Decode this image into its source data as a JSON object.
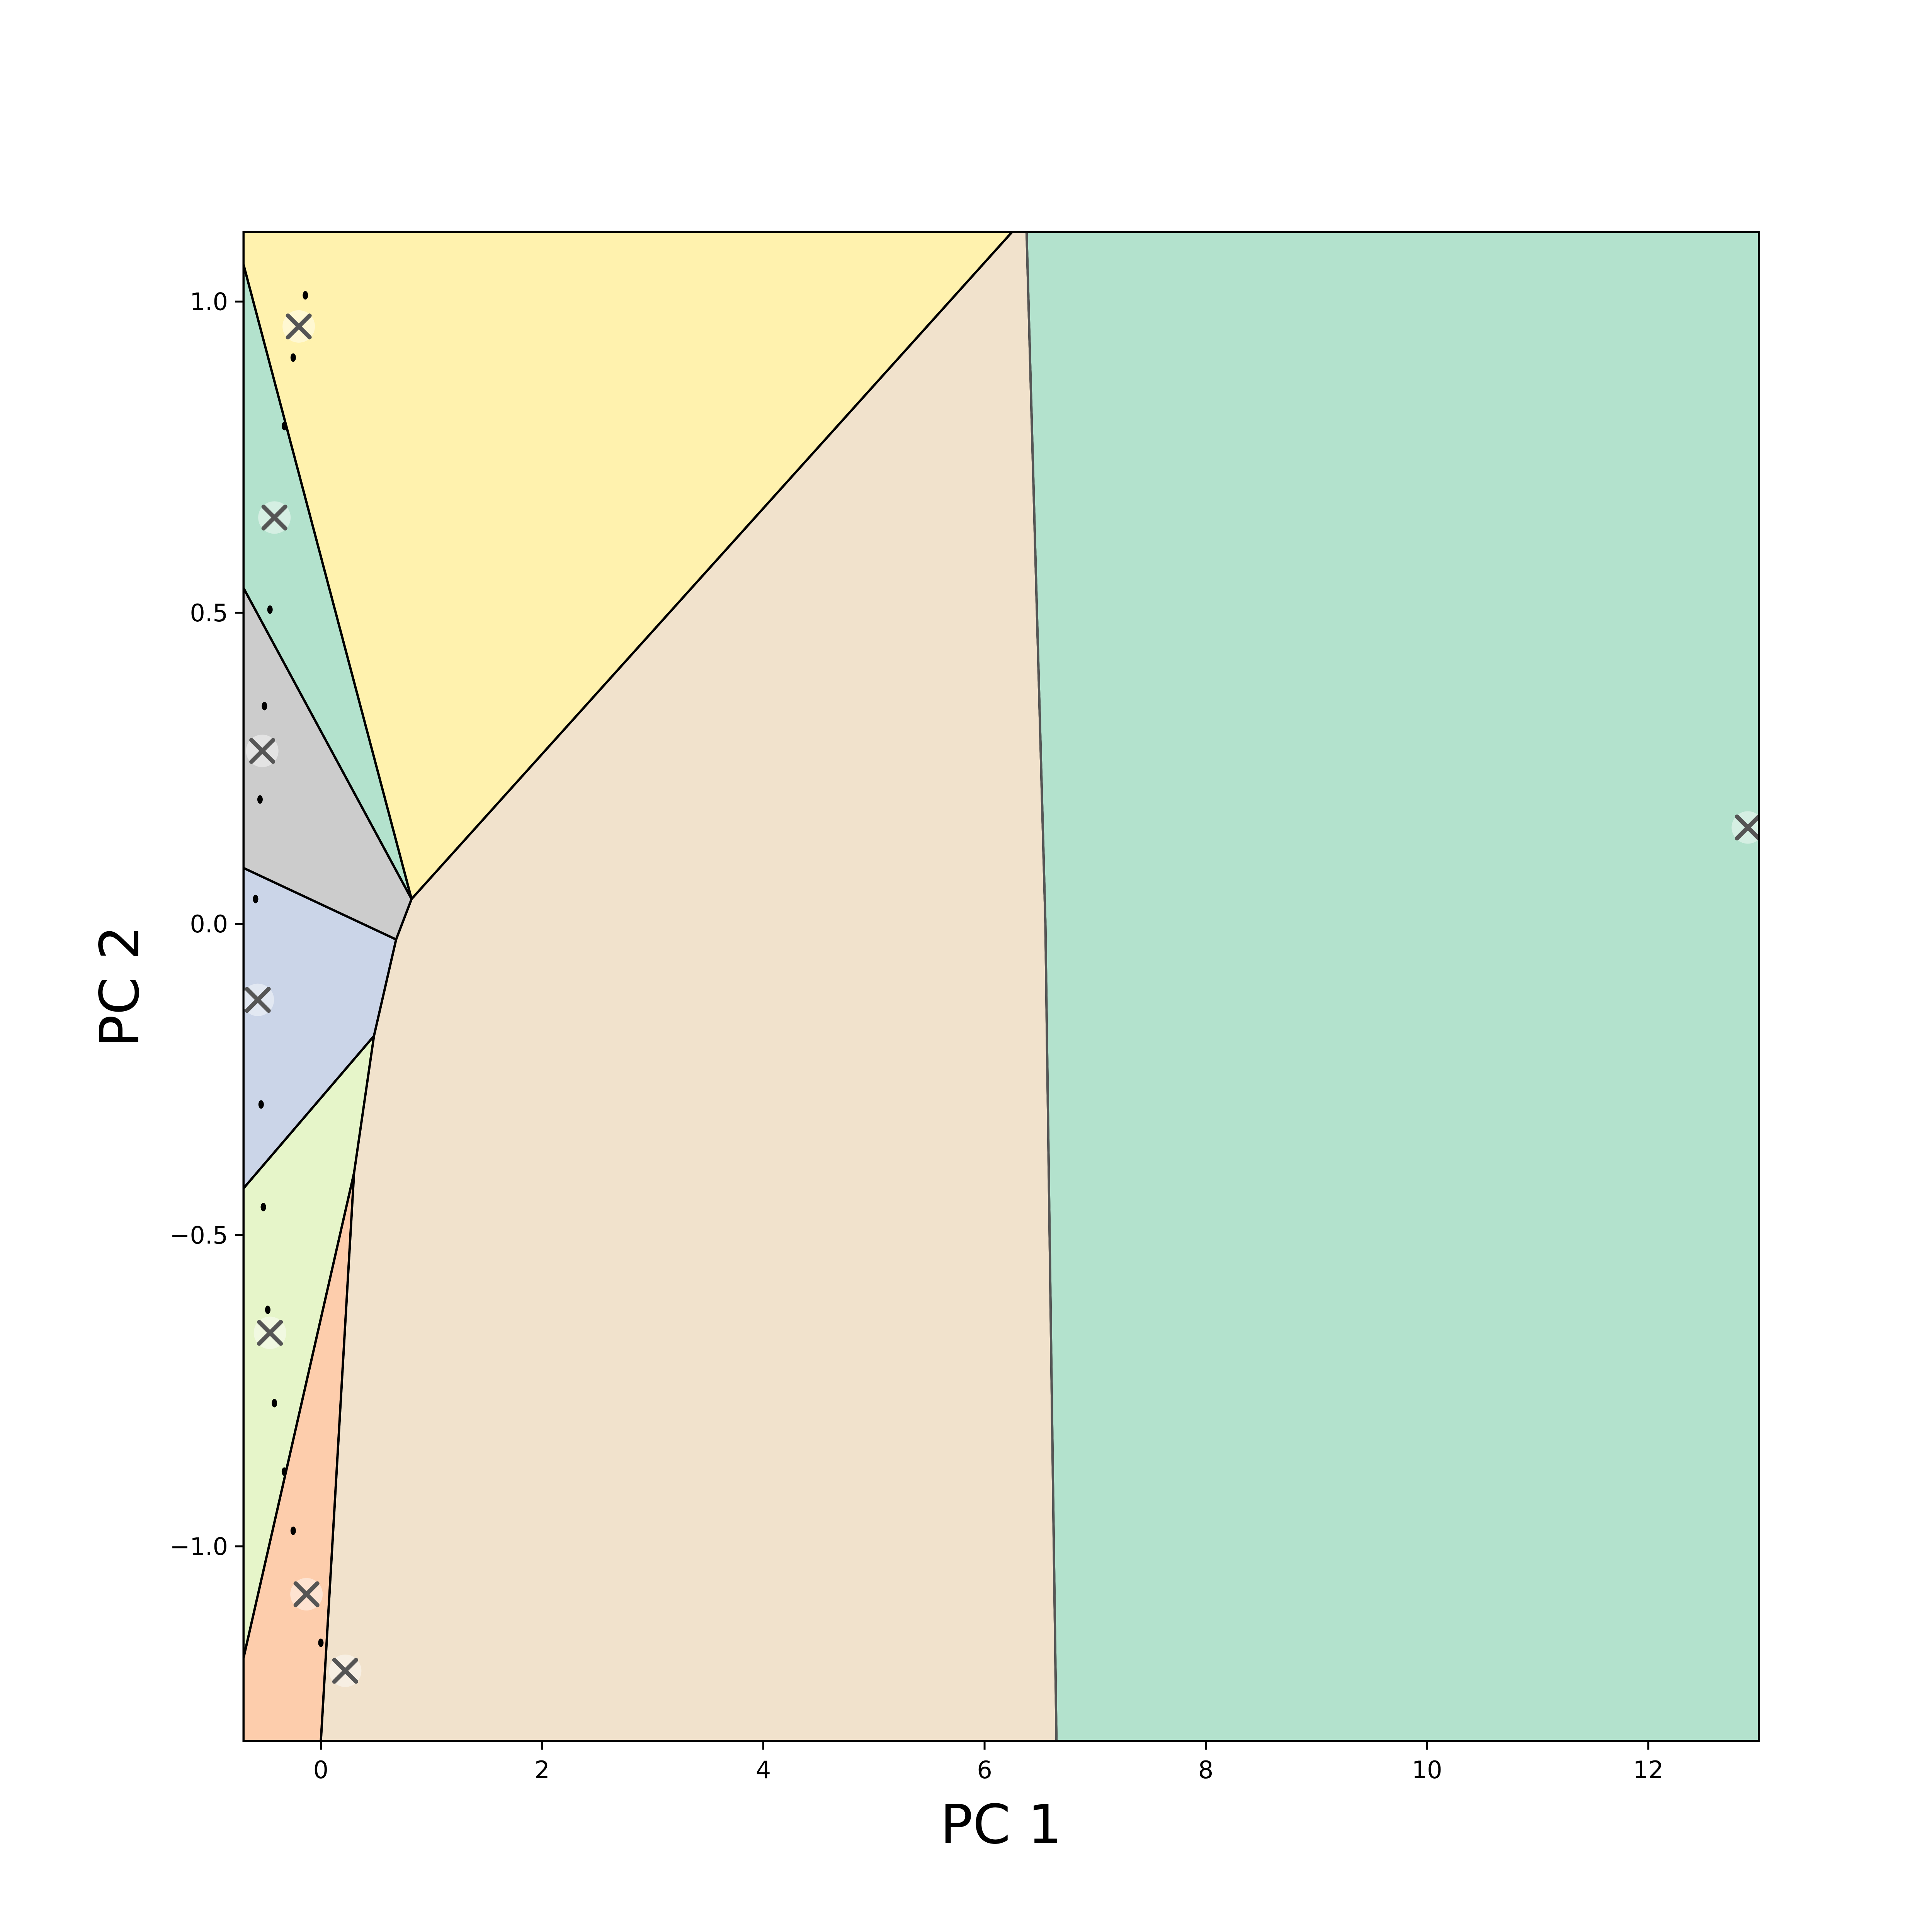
{
  "chart_data": {
    "type": "scatter",
    "title": "",
    "xlabel": "PC 1",
    "ylabel": "PC 2",
    "xlim": [
      -0.7,
      13.0
    ],
    "ylim": [
      -1.313,
      1.112
    ],
    "x_ticks": [
      0,
      2,
      4,
      6,
      8,
      10,
      12
    ],
    "x_tick_labels": [
      "0",
      "2",
      "4",
      "6",
      "8",
      "10",
      "12"
    ],
    "y_ticks": [
      -1.0,
      -0.5,
      0.0,
      0.5,
      1.0
    ],
    "y_tick_labels": [
      "−1.0",
      "−0.5",
      "0.0",
      "0.5",
      "1.0"
    ],
    "grid": false,
    "legend": "none",
    "regions": [
      {
        "color": "#b3e2cd",
        "polygon": [
          [
            6.38,
            1.112
          ],
          [
            13.0,
            1.112
          ],
          [
            13.0,
            -1.313
          ],
          [
            6.65,
            -1.313
          ],
          [
            6.55,
            0.0
          ]
        ]
      },
      {
        "color": "#f1e2cc",
        "polygon": [
          [
            0.82,
            0.04
          ],
          [
            6.25,
            1.112
          ],
          [
            6.38,
            1.112
          ],
          [
            6.55,
            0.0
          ],
          [
            6.65,
            -1.313
          ],
          [
            0.0,
            -1.313
          ],
          [
            0.3,
            -0.4
          ],
          [
            0.48,
            -0.18
          ],
          [
            0.68,
            -0.025
          ]
        ]
      },
      {
        "color": "#fff2ae",
        "polygon": [
          [
            -0.7,
            1.06
          ],
          [
            -0.7,
            1.112
          ],
          [
            6.25,
            1.112
          ],
          [
            0.82,
            0.04
          ]
        ]
      },
      {
        "color": "#b3e2cd",
        "polygon": [
          [
            -0.7,
            1.06
          ],
          [
            0.82,
            0.04
          ],
          [
            -0.7,
            0.54
          ]
        ]
      },
      {
        "color": "#cccccc",
        "polygon": [
          [
            -0.7,
            0.54
          ],
          [
            0.82,
            0.04
          ],
          [
            0.68,
            -0.025
          ],
          [
            -0.7,
            0.09
          ]
        ]
      },
      {
        "color": "#cbd5e8",
        "polygon": [
          [
            -0.7,
            0.09
          ],
          [
            0.68,
            -0.025
          ],
          [
            0.48,
            -0.18
          ],
          [
            -0.7,
            -0.425
          ]
        ]
      },
      {
        "color": "#e6f5c9",
        "polygon": [
          [
            -0.7,
            -0.425
          ],
          [
            0.48,
            -0.18
          ],
          [
            0.3,
            -0.4
          ],
          [
            -0.7,
            -1.18
          ]
        ]
      },
      {
        "color": "#fdcdac",
        "polygon": [
          [
            -0.7,
            -1.18
          ],
          [
            0.3,
            -0.4
          ],
          [
            0.0,
            -1.313
          ],
          [
            -0.7,
            -1.313
          ]
        ]
      }
    ],
    "centroids": [
      {
        "x": -0.2,
        "y": 0.96
      },
      {
        "x": -0.42,
        "y": 0.653
      },
      {
        "x": -0.53,
        "y": 0.278
      },
      {
        "x": -0.57,
        "y": -0.122
      },
      {
        "x": -0.46,
        "y": -0.657
      },
      {
        "x": -0.13,
        "y": -1.077
      },
      {
        "x": 0.22,
        "y": -1.2
      },
      {
        "x": 12.9,
        "y": 0.155
      }
    ],
    "points": [
      {
        "x": -0.14,
        "y": 1.01
      },
      {
        "x": -0.25,
        "y": 0.91
      },
      {
        "x": -0.33,
        "y": 0.8
      },
      {
        "x": -0.46,
        "y": 0.505
      },
      {
        "x": -0.51,
        "y": 0.35
      },
      {
        "x": -0.55,
        "y": 0.2
      },
      {
        "x": -0.59,
        "y": 0.04
      },
      {
        "x": -0.54,
        "y": -0.29
      },
      {
        "x": -0.52,
        "y": -0.455
      },
      {
        "x": -0.48,
        "y": -0.62
      },
      {
        "x": -0.42,
        "y": -0.77
      },
      {
        "x": -0.33,
        "y": -0.88
      },
      {
        "x": -0.25,
        "y": -0.975
      },
      {
        "x": 0.0,
        "y": -1.155
      }
    ]
  }
}
